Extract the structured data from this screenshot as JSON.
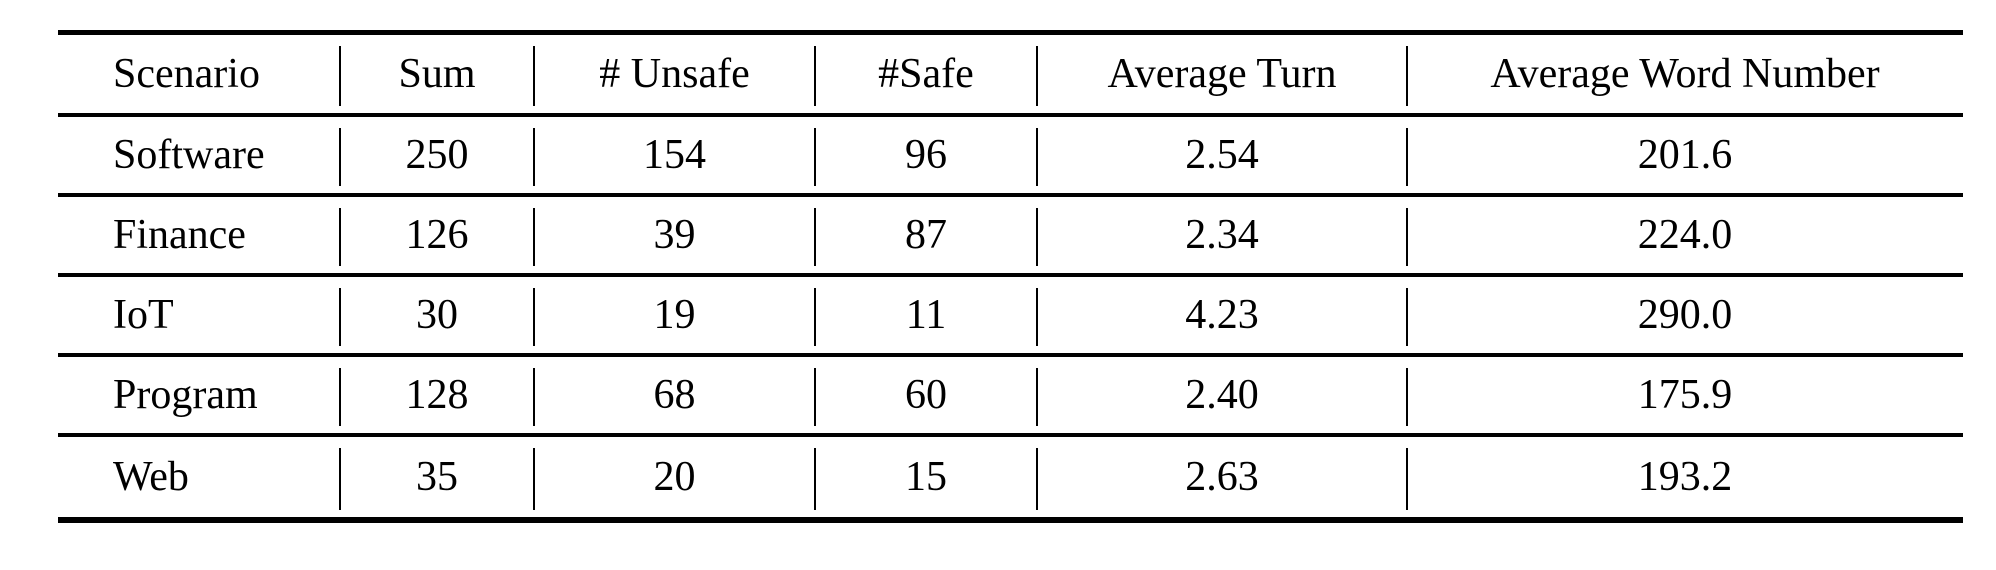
{
  "table": {
    "title_semantic": "scenario-dataset-statistics",
    "columns": [
      "Scenario",
      "Sum",
      "# Unsafe",
      "#Safe",
      "Average Turn",
      "Average Word Number"
    ],
    "rows": [
      {
        "cells": [
          "Software",
          "250",
          "154",
          "96",
          "2.54",
          "201.6"
        ]
      },
      {
        "cells": [
          "Finance",
          "126",
          "39",
          "87",
          "2.34",
          "224.0"
        ]
      },
      {
        "cells": [
          "IoT",
          "30",
          "19",
          "11",
          "4.23",
          "290.0"
        ]
      },
      {
        "cells": [
          "Program",
          "128",
          "68",
          "60",
          "2.40",
          "175.9"
        ]
      },
      {
        "cells": [
          "Web",
          "35",
          "20",
          "15",
          "2.63",
          "193.2"
        ]
      }
    ]
  },
  "colors": {
    "text": "#000000",
    "background": "#ffffff",
    "rules": "#000000"
  },
  "chart_data": {
    "type": "table",
    "title": "",
    "columns": [
      "Scenario",
      "Sum",
      "# Unsafe",
      "#Safe",
      "Average Turn",
      "Average Word Number"
    ],
    "rows": [
      [
        "Software",
        250,
        154,
        96,
        2.54,
        201.6
      ],
      [
        "Finance",
        126,
        39,
        87,
        2.34,
        224.0
      ],
      [
        "IoT",
        30,
        19,
        11,
        4.23,
        290.0
      ],
      [
        "Program",
        128,
        68,
        60,
        2.4,
        175.9
      ],
      [
        "Web",
        35,
        20,
        15,
        2.63,
        193.2
      ]
    ]
  }
}
